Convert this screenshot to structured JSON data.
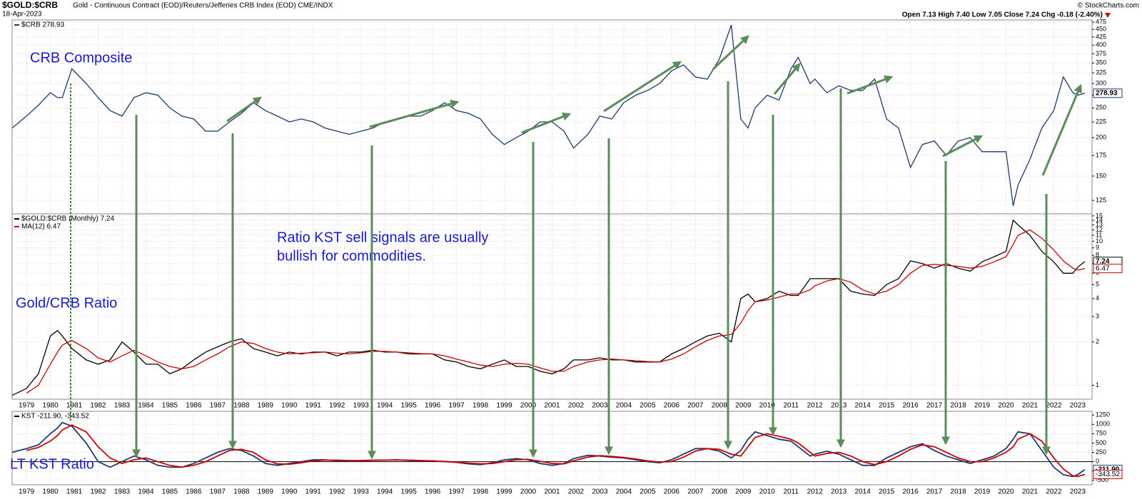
{
  "header": {
    "symbol": "$GOLD:$CRB",
    "description": "Gold - Continuous Contract (EOD)/Reuters/Jefferies CRB Index (EOD) CME/INDX",
    "date": "18-Apr-2023",
    "quote": "Open 7.13 High 7.40 Low 7.05 Close 7.24 Chg -0.18 (-2.40%)",
    "credit": "© StockCharts.com"
  },
  "chart_data": [
    {
      "type": "line",
      "log_scale": true,
      "grid": true,
      "annotations": [
        "CRB Composite"
      ],
      "xlim": [
        1978.4,
        2023.6
      ],
      "x": [
        1978.4,
        1979,
        1979.5,
        1980,
        1980.3,
        1980.5,
        1980.9,
        1981.5,
        1982,
        1982.5,
        1983,
        1983.5,
        1984,
        1984.5,
        1985,
        1985.5,
        1986,
        1986.5,
        1987,
        1987.5,
        1988,
        1988.5,
        1989,
        1989.5,
        1990,
        1990.5,
        1991,
        1991.5,
        1992,
        1992.5,
        1993,
        1993.5,
        1994,
        1994.5,
        1995,
        1995.5,
        1996,
        1996.5,
        1997,
        1997.5,
        1998,
        1998.5,
        1999,
        1999.5,
        2000,
        2000.5,
        2001,
        2001.5,
        2001.9,
        2002.5,
        2003,
        2003.5,
        2004,
        2004.5,
        2005,
        2005.5,
        2006,
        2006.5,
        2007,
        2007.5,
        2008,
        2008.5,
        2008.9,
        2009.2,
        2009.5,
        2010,
        2010.5,
        2011,
        2011.3,
        2011.8,
        2012,
        2012.5,
        2013,
        2013.5,
        2014,
        2014.5,
        2015,
        2015.5,
        2016,
        2016.5,
        2017,
        2017.5,
        2018,
        2018.5,
        2019,
        2019.5,
        2020,
        2020.3,
        2020.5,
        2021,
        2021.5,
        2022,
        2022.4,
        2022.8,
        2023,
        2023.3
      ],
      "ylim": [
        113,
        483
      ],
      "yticks": [
        125,
        150,
        175,
        200,
        225,
        250,
        275,
        300,
        325,
        350,
        375,
        400,
        425,
        450,
        475
      ],
      "series": [
        {
          "name": "$CRB 278.93",
          "color": "#1c3a70",
          "values": [
            215,
            235,
            255,
            280,
            270,
            270,
            335,
            300,
            270,
            245,
            235,
            270,
            280,
            275,
            250,
            235,
            230,
            210,
            210,
            225,
            240,
            260,
            245,
            235,
            225,
            230,
            225,
            215,
            210,
            205,
            210,
            215,
            225,
            230,
            235,
            235,
            245,
            260,
            245,
            240,
            230,
            205,
            190,
            200,
            210,
            225,
            225,
            210,
            185,
            205,
            235,
            230,
            260,
            275,
            285,
            300,
            330,
            345,
            315,
            310,
            360,
            465,
            230,
            215,
            250,
            275,
            265,
            335,
            365,
            300,
            310,
            280,
            295,
            285,
            285,
            310,
            230,
            215,
            160,
            190,
            195,
            175,
            195,
            200,
            180,
            180,
            180,
            120,
            140,
            170,
            215,
            245,
            315,
            280,
            275,
            278.93
          ]
        }
      ]
    },
    {
      "type": "line",
      "log_scale": true,
      "grid": true,
      "annotations": [
        "Ratio KST sell signals are usually",
        "bullish for commodities.",
        "Gold/CRB Ratio"
      ],
      "xlim": [
        1978.4,
        2023.6
      ],
      "xticks": [
        1979,
        1980,
        1981,
        1982,
        1983,
        1984,
        1985,
        1986,
        1987,
        1988,
        1989,
        1990,
        1991,
        1992,
        1993,
        1994,
        1995,
        1996,
        1997,
        1998,
        1999,
        2000,
        2001,
        2002,
        2003,
        2004,
        2005,
        2006,
        2007,
        2008,
        2009,
        2010,
        2011,
        2012,
        2013,
        2014,
        2015,
        2016,
        2017,
        2018,
        2019,
        2020,
        2021,
        2022,
        2023
      ],
      "x": [
        1978.4,
        1979,
        1979.5,
        1980,
        1980.3,
        1980.5,
        1980.9,
        1981.5,
        1982,
        1982.5,
        1983,
        1983.5,
        1984,
        1984.5,
        1985,
        1985.5,
        1986,
        1986.5,
        1987,
        1987.5,
        1988,
        1988.5,
        1989,
        1989.5,
        1990,
        1990.5,
        1991,
        1991.5,
        1992,
        1992.5,
        1993,
        1993.5,
        1994,
        1994.5,
        1995,
        1995.5,
        1996,
        1996.5,
        1997,
        1997.5,
        1998,
        1998.5,
        1999,
        1999.5,
        2000,
        2000.5,
        2001,
        2001.5,
        2001.9,
        2002.5,
        2003,
        2003.5,
        2004,
        2004.5,
        2005,
        2005.5,
        2006,
        2006.5,
        2007,
        2007.5,
        2008,
        2008.5,
        2008.9,
        2009.2,
        2009.5,
        2010,
        2010.5,
        2011,
        2011.3,
        2011.8,
        2012,
        2012.5,
        2013,
        2013.5,
        2014,
        2014.5,
        2015,
        2015.5,
        2016,
        2016.5,
        2017,
        2017.5,
        2018,
        2018.5,
        2019,
        2019.5,
        2020,
        2020.3,
        2020.5,
        2021,
        2021.5,
        2022,
        2022.4,
        2022.8,
        2023,
        2023.3
      ],
      "ylim": [
        0.8,
        15.5
      ],
      "yticks": [
        1,
        2,
        3,
        4,
        5,
        6,
        7,
        8,
        9,
        10,
        11,
        12,
        13,
        14,
        15
      ],
      "series": [
        {
          "name": "$GOLD:$CRB (Monthly) 7.24",
          "color": "#000000",
          "values": [
            0.85,
            0.95,
            1.2,
            2.2,
            2.4,
            2.2,
            1.8,
            1.5,
            1.4,
            1.5,
            2.0,
            1.7,
            1.4,
            1.4,
            1.2,
            1.3,
            1.5,
            1.7,
            1.85,
            2.0,
            2.1,
            1.8,
            1.7,
            1.6,
            1.7,
            1.65,
            1.7,
            1.7,
            1.6,
            1.7,
            1.7,
            1.75,
            1.7,
            1.7,
            1.65,
            1.65,
            1.65,
            1.5,
            1.45,
            1.35,
            1.3,
            1.4,
            1.5,
            1.35,
            1.35,
            1.25,
            1.2,
            1.3,
            1.5,
            1.5,
            1.55,
            1.5,
            1.5,
            1.45,
            1.45,
            1.45,
            1.65,
            1.8,
            2.0,
            2.2,
            2.3,
            2.0,
            4.0,
            4.3,
            3.8,
            4.0,
            4.5,
            4.2,
            4.2,
            5.5,
            5.5,
            5.5,
            5.5,
            4.5,
            4.3,
            4.2,
            5.0,
            5.5,
            7.3,
            7.0,
            6.5,
            7.0,
            6.5,
            6.2,
            7.2,
            7.8,
            8.5,
            14.0,
            13.0,
            11.0,
            8.5,
            7.2,
            6.0,
            6.0,
            6.6,
            7.24
          ]
        },
        {
          "name": "MA(12) 6.47",
          "color": "#cc0000",
          "values": [
            null,
            0.88,
            1.0,
            1.4,
            1.7,
            1.9,
            2.05,
            1.8,
            1.55,
            1.45,
            1.6,
            1.75,
            1.6,
            1.45,
            1.35,
            1.3,
            1.35,
            1.5,
            1.65,
            1.85,
            2.0,
            1.95,
            1.8,
            1.7,
            1.65,
            1.67,
            1.68,
            1.7,
            1.67,
            1.65,
            1.68,
            1.72,
            1.72,
            1.7,
            1.68,
            1.66,
            1.65,
            1.6,
            1.52,
            1.45,
            1.38,
            1.35,
            1.4,
            1.42,
            1.4,
            1.32,
            1.25,
            1.25,
            1.35,
            1.45,
            1.5,
            1.52,
            1.5,
            1.48,
            1.46,
            1.45,
            1.52,
            1.65,
            1.85,
            2.05,
            2.2,
            2.25,
            2.7,
            3.3,
            3.8,
            3.9,
            4.1,
            4.3,
            4.3,
            4.6,
            4.9,
            5.3,
            5.5,
            5.2,
            4.6,
            4.3,
            4.5,
            5.0,
            6.0,
            6.8,
            6.9,
            6.8,
            6.7,
            6.5,
            6.7,
            7.2,
            7.8,
            9.5,
            11.0,
            12.0,
            10.5,
            8.7,
            7.3,
            6.5,
            6.3,
            6.47
          ]
        }
      ]
    },
    {
      "type": "line",
      "log_scale": false,
      "grid": true,
      "legend": "KST -211.90, -343.52",
      "end_labels": [
        "-211.90",
        "-343.52"
      ],
      "annotations": [
        "LT KST Ratio"
      ],
      "xlim": [
        1978.4,
        2023.6
      ],
      "xticks": [
        1979,
        1980,
        1981,
        1982,
        1983,
        1984,
        1985,
        1986,
        1987,
        1988,
        1989,
        1990,
        1991,
        1992,
        1993,
        1994,
        1995,
        1996,
        1997,
        1998,
        1999,
        2000,
        2001,
        2002,
        2003,
        2004,
        2005,
        2006,
        2007,
        2008,
        2009,
        2010,
        2011,
        2012,
        2013,
        2014,
        2015,
        2016,
        2017,
        2018,
        2019,
        2020,
        2021,
        2022,
        2023
      ],
      "x": [
        1978.4,
        1979,
        1979.5,
        1980,
        1980.3,
        1980.5,
        1980.9,
        1981.5,
        1982,
        1982.5,
        1983,
        1983.5,
        1984,
        1984.5,
        1985,
        1985.5,
        1986,
        1986.5,
        1987,
        1987.5,
        1988,
        1988.5,
        1989,
        1989.5,
        1990,
        1990.5,
        1991,
        1991.5,
        1992,
        1992.5,
        1993,
        1993.5,
        1994,
        1994.5,
        1995,
        1995.5,
        1996,
        1996.5,
        1997,
        1997.5,
        1998,
        1998.5,
        1999,
        1999.5,
        2000,
        2000.5,
        2001,
        2001.5,
        2001.9,
        2002.5,
        2003,
        2003.5,
        2004,
        2004.5,
        2005,
        2005.5,
        2006,
        2006.5,
        2007,
        2007.5,
        2008,
        2008.5,
        2008.9,
        2009.2,
        2009.5,
        2010,
        2010.5,
        2011,
        2011.3,
        2011.8,
        2012,
        2012.5,
        2013,
        2013.5,
        2014,
        2014.5,
        2015,
        2015.5,
        2016,
        2016.5,
        2017,
        2017.5,
        2018,
        2018.5,
        2019,
        2019.5,
        2020,
        2020.3,
        2020.5,
        2021,
        2021.5,
        2022,
        2022.4,
        2022.8,
        2023,
        2023.3
      ],
      "ylim": [
        -620,
        1350
      ],
      "yticks": [
        -500,
        -250,
        0,
        250,
        500,
        750,
        1000,
        1250
      ],
      "series": [
        {
          "color": "#1c3a70",
          "values": [
            250,
            350,
            450,
            750,
            900,
            1050,
            950,
            500,
            0,
            -150,
            0,
            150,
            50,
            -100,
            -150,
            -150,
            -50,
            100,
            250,
            350,
            300,
            150,
            -50,
            -100,
            -50,
            0,
            50,
            50,
            20,
            20,
            30,
            40,
            40,
            50,
            30,
            20,
            20,
            0,
            -20,
            -60,
            -80,
            -30,
            50,
            80,
            50,
            -50,
            -100,
            -50,
            80,
            170,
            150,
            120,
            100,
            50,
            0,
            -30,
            50,
            200,
            350,
            350,
            280,
            100,
            300,
            600,
            800,
            700,
            600,
            550,
            400,
            150,
            200,
            280,
            200,
            50,
            -100,
            -100,
            100,
            250,
            400,
            480,
            300,
            150,
            50,
            -50,
            50,
            150,
            350,
            600,
            800,
            750,
            300,
            -150,
            -350,
            -400,
            -350,
            -211.9
          ]
        },
        {
          "color": "#cc0000",
          "values": [
            null,
            300,
            380,
            550,
            700,
            850,
            980,
            800,
            400,
            100,
            -50,
            50,
            100,
            0,
            -100,
            -150,
            -100,
            0,
            150,
            300,
            330,
            250,
            50,
            -60,
            -70,
            -30,
            20,
            40,
            40,
            30,
            25,
            35,
            40,
            45,
            40,
            30,
            20,
            5,
            -10,
            -40,
            -60,
            -50,
            0,
            50,
            60,
            10,
            -50,
            -60,
            20,
            120,
            160,
            140,
            110,
            70,
            20,
            -10,
            0,
            120,
            280,
            350,
            330,
            200,
            150,
            400,
            650,
            750,
            680,
            600,
            500,
            250,
            150,
            220,
            250,
            150,
            0,
            -80,
            0,
            150,
            330,
            450,
            400,
            250,
            100,
            0,
            0,
            100,
            250,
            400,
            600,
            750,
            550,
            100,
            -200,
            -380,
            -400,
            -343.52
          ]
        }
      ]
    }
  ]
}
